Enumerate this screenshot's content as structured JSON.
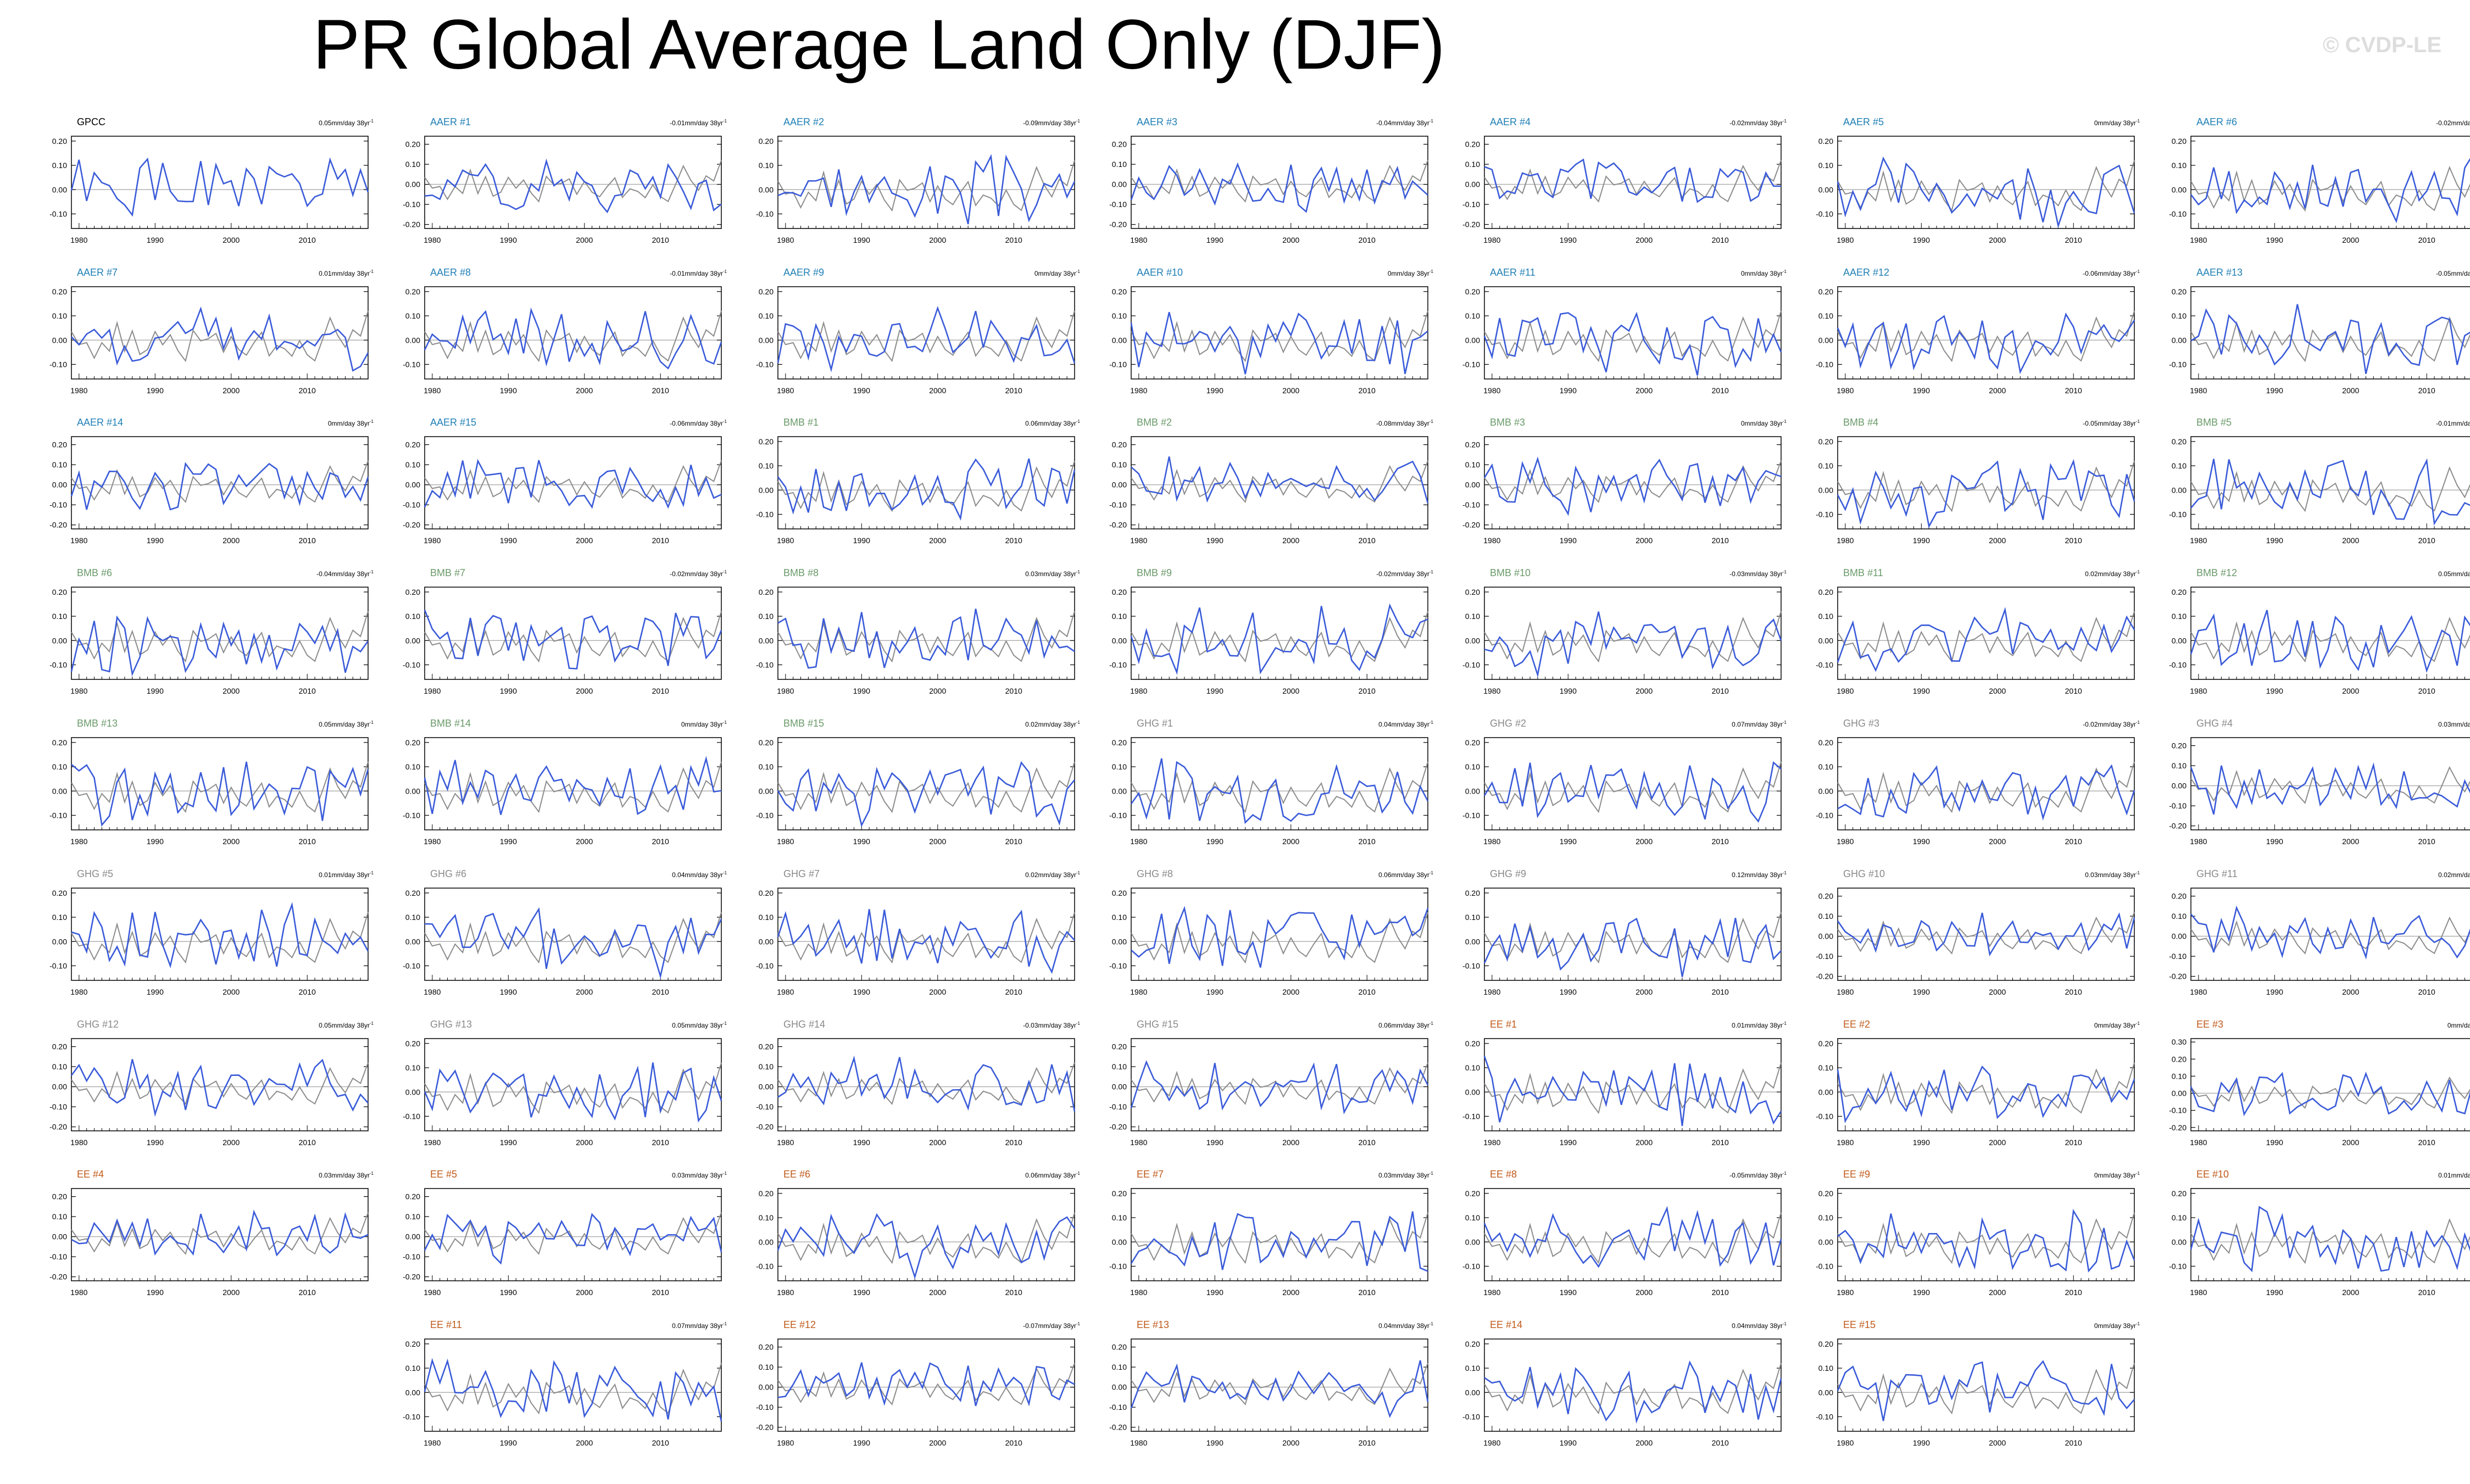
{
  "title": "PR Global Average Land Only (DJF)",
  "watermark": "© CVDP-LE",
  "colors": {
    "observed_line": "#3a5bd9",
    "ensemble_line": "#8c8c8c",
    "zero_line": "#b0b0b0",
    "gpcc_title": "#000000",
    "aer_title": "#1f7fb5",
    "bmb_title": "#6a9a6a",
    "ghg_title": "#8a8a8a",
    "ee_title": "#c05a1a"
  },
  "chart_data": {
    "type": "line",
    "x_range": [
      1979,
      2018
    ],
    "x_ticks": [
      "1980",
      "1990",
      "2000",
      "2010"
    ],
    "unit_suffix": "mm/day 38yr",
    "unit_exp": "-1",
    "panels": [
      {
        "name": "GPCC",
        "group": "gpcc",
        "trend": "0.05",
        "yticks": [
          "0.20",
          "0.10",
          "0.00",
          "-0.10"
        ],
        "ylim": [
          -0.16,
          0.22
        ],
        "seed": 1
      },
      {
        "name": "AAER #1",
        "group": "aer",
        "trend": "-0.01",
        "yticks": [
          "0.20",
          "0.10",
          "0.00",
          "-0.10",
          "-0.20"
        ],
        "ylim": [
          -0.22,
          0.24
        ],
        "seed": 2
      },
      {
        "name": "AAER #2",
        "group": "aer",
        "trend": "-0.09",
        "yticks": [
          "0.20",
          "0.10",
          "0.00",
          "-0.10"
        ],
        "ylim": [
          -0.16,
          0.22
        ],
        "seed": 3
      },
      {
        "name": "AAER #3",
        "group": "aer",
        "trend": "-0.04",
        "yticks": [
          "0.20",
          "0.10",
          "0.00",
          "-0.10",
          "-0.20"
        ],
        "ylim": [
          -0.22,
          0.24
        ],
        "seed": 4
      },
      {
        "name": "AAER #4",
        "group": "aer",
        "trend": "-0.02",
        "yticks": [
          "0.20",
          "0.10",
          "0.00",
          "-0.10",
          "-0.20"
        ],
        "ylim": [
          -0.22,
          0.24
        ],
        "seed": 5
      },
      {
        "name": "AAER #5",
        "group": "aer",
        "trend": "0",
        "yticks": [
          "0.20",
          "0.10",
          "0.00",
          "-0.10"
        ],
        "ylim": [
          -0.16,
          0.22
        ],
        "seed": 6
      },
      {
        "name": "AAER #6",
        "group": "aer",
        "trend": "-0.02",
        "yticks": [
          "0.20",
          "0.10",
          "0.00",
          "-0.10"
        ],
        "ylim": [
          -0.16,
          0.22
        ],
        "seed": 7
      },
      {
        "name": "AAER #7",
        "group": "aer",
        "trend": "0.01",
        "yticks": [
          "0.20",
          "0.10",
          "0.00",
          "-0.10"
        ],
        "ylim": [
          -0.16,
          0.22
        ],
        "seed": 8
      },
      {
        "name": "AAER #8",
        "group": "aer",
        "trend": "-0.01",
        "yticks": [
          "0.20",
          "0.10",
          "0.00",
          "-0.10"
        ],
        "ylim": [
          -0.16,
          0.22
        ],
        "seed": 9
      },
      {
        "name": "AAER #9",
        "group": "aer",
        "trend": "0",
        "yticks": [
          "0.20",
          "0.10",
          "0.00",
          "-0.10"
        ],
        "ylim": [
          -0.16,
          0.22
        ],
        "seed": 10
      },
      {
        "name": "AAER #10",
        "group": "aer",
        "trend": "0",
        "yticks": [
          "0.20",
          "0.10",
          "0.00",
          "-0.10"
        ],
        "ylim": [
          -0.16,
          0.22
        ],
        "seed": 11
      },
      {
        "name": "AAER #11",
        "group": "aer",
        "trend": "0",
        "yticks": [
          "0.20",
          "0.10",
          "0.00",
          "-0.10"
        ],
        "ylim": [
          -0.16,
          0.22
        ],
        "seed": 12
      },
      {
        "name": "AAER #12",
        "group": "aer",
        "trend": "-0.06",
        "yticks": [
          "0.20",
          "0.10",
          "0.00",
          "-0.10"
        ],
        "ylim": [
          -0.16,
          0.22
        ],
        "seed": 13
      },
      {
        "name": "AAER #13",
        "group": "aer",
        "trend": "-0.05",
        "yticks": [
          "0.20",
          "0.10",
          "0.00",
          "-0.10"
        ],
        "ylim": [
          -0.16,
          0.22
        ],
        "seed": 14
      },
      {
        "name": "AAER #14",
        "group": "aer",
        "trend": "0",
        "yticks": [
          "0.20",
          "0.10",
          "0.00",
          "-0.10",
          "-0.20"
        ],
        "ylim": [
          -0.22,
          0.24
        ],
        "seed": 15
      },
      {
        "name": "AAER #15",
        "group": "aer",
        "trend": "-0.06",
        "yticks": [
          "0.20",
          "0.10",
          "0.00",
          "-0.10",
          "-0.20"
        ],
        "ylim": [
          -0.22,
          0.24
        ],
        "seed": 16
      },
      {
        "name": "BMB #1",
        "group": "bmb",
        "trend": "0.06",
        "yticks": [
          "0.20",
          "0.10",
          "0.00",
          "-0.10"
        ],
        "ylim": [
          -0.16,
          0.22
        ],
        "seed": 17
      },
      {
        "name": "BMB #2",
        "group": "bmb",
        "trend": "-0.08",
        "yticks": [
          "0.20",
          "0.10",
          "0.00",
          "-0.10",
          "-0.20"
        ],
        "ylim": [
          -0.22,
          0.24
        ],
        "seed": 18
      },
      {
        "name": "BMB #3",
        "group": "bmb",
        "trend": "0",
        "yticks": [
          "0.20",
          "0.10",
          "0.00",
          "-0.10",
          "-0.20"
        ],
        "ylim": [
          -0.22,
          0.24
        ],
        "seed": 19
      },
      {
        "name": "BMB #4",
        "group": "bmb",
        "trend": "-0.05",
        "yticks": [
          "0.20",
          "0.10",
          "0.00",
          "-0.10"
        ],
        "ylim": [
          -0.16,
          0.22
        ],
        "seed": 20
      },
      {
        "name": "BMB #5",
        "group": "bmb",
        "trend": "-0.01",
        "yticks": [
          "0.20",
          "0.10",
          "0.00",
          "-0.10"
        ],
        "ylim": [
          -0.16,
          0.22
        ],
        "seed": 21
      },
      {
        "name": "BMB #6",
        "group": "bmb",
        "trend": "-0.04",
        "yticks": [
          "0.20",
          "0.10",
          "0.00",
          "-0.10"
        ],
        "ylim": [
          -0.16,
          0.22
        ],
        "seed": 22
      },
      {
        "name": "BMB #7",
        "group": "bmb",
        "trend": "-0.02",
        "yticks": [
          "0.20",
          "0.10",
          "0.00",
          "-0.10"
        ],
        "ylim": [
          -0.16,
          0.22
        ],
        "seed": 23
      },
      {
        "name": "BMB #8",
        "group": "bmb",
        "trend": "0.03",
        "yticks": [
          "0.20",
          "0.10",
          "0.00",
          "-0.10"
        ],
        "ylim": [
          -0.16,
          0.22
        ],
        "seed": 24
      },
      {
        "name": "BMB #9",
        "group": "bmb",
        "trend": "-0.02",
        "yticks": [
          "0.20",
          "0.10",
          "0.00",
          "-0.10"
        ],
        "ylim": [
          -0.16,
          0.22
        ],
        "seed": 25
      },
      {
        "name": "BMB #10",
        "group": "bmb",
        "trend": "-0.03",
        "yticks": [
          "0.20",
          "0.10",
          "0.00",
          "-0.10"
        ],
        "ylim": [
          -0.16,
          0.22
        ],
        "seed": 26
      },
      {
        "name": "BMB #11",
        "group": "bmb",
        "trend": "0.02",
        "yticks": [
          "0.20",
          "0.10",
          "0.00",
          "-0.10"
        ],
        "ylim": [
          -0.16,
          0.22
        ],
        "seed": 27
      },
      {
        "name": "BMB #12",
        "group": "bmb",
        "trend": "0.05",
        "yticks": [
          "0.20",
          "0.10",
          "0.00",
          "-0.10"
        ],
        "ylim": [
          -0.16,
          0.22
        ],
        "seed": 28
      },
      {
        "name": "BMB #13",
        "group": "bmb",
        "trend": "0.05",
        "yticks": [
          "0.20",
          "0.10",
          "0.00",
          "-0.10"
        ],
        "ylim": [
          -0.16,
          0.22
        ],
        "seed": 29
      },
      {
        "name": "BMB #14",
        "group": "bmb",
        "trend": "0",
        "yticks": [
          "0.20",
          "0.10",
          "0.00",
          "-0.10"
        ],
        "ylim": [
          -0.16,
          0.22
        ],
        "seed": 30
      },
      {
        "name": "BMB #15",
        "group": "bmb",
        "trend": "0.02",
        "yticks": [
          "0.20",
          "0.10",
          "0.00",
          "-0.10"
        ],
        "ylim": [
          -0.16,
          0.22
        ],
        "seed": 31
      },
      {
        "name": "GHG #1",
        "group": "ghg",
        "trend": "0.04",
        "yticks": [
          "0.20",
          "0.10",
          "0.00",
          "-0.10"
        ],
        "ylim": [
          -0.16,
          0.22
        ],
        "seed": 32
      },
      {
        "name": "GHG #2",
        "group": "ghg",
        "trend": "0.07",
        "yticks": [
          "0.20",
          "0.10",
          "0.00",
          "-0.10"
        ],
        "ylim": [
          -0.16,
          0.22
        ],
        "seed": 33
      },
      {
        "name": "GHG #3",
        "group": "ghg",
        "trend": "-0.02",
        "yticks": [
          "0.20",
          "0.10",
          "0.00",
          "-0.10"
        ],
        "ylim": [
          -0.16,
          0.22
        ],
        "seed": 34
      },
      {
        "name": "GHG #4",
        "group": "ghg",
        "trend": "0.03",
        "yticks": [
          "0.20",
          "0.10",
          "0.00",
          "-0.10",
          "-0.20"
        ],
        "ylim": [
          -0.22,
          0.24
        ],
        "seed": 35
      },
      {
        "name": "GHG #5",
        "group": "ghg",
        "trend": "0.01",
        "yticks": [
          "0.20",
          "0.10",
          "0.00",
          "-0.10"
        ],
        "ylim": [
          -0.16,
          0.22
        ],
        "seed": 36
      },
      {
        "name": "GHG #6",
        "group": "ghg",
        "trend": "0.04",
        "yticks": [
          "0.20",
          "0.10",
          "0.00",
          "-0.10"
        ],
        "ylim": [
          -0.16,
          0.22
        ],
        "seed": 37
      },
      {
        "name": "GHG #7",
        "group": "ghg",
        "trend": "0.02",
        "yticks": [
          "0.20",
          "0.10",
          "0.00",
          "-0.10"
        ],
        "ylim": [
          -0.16,
          0.22
        ],
        "seed": 38
      },
      {
        "name": "GHG #8",
        "group": "ghg",
        "trend": "0.06",
        "yticks": [
          "0.20",
          "0.10",
          "0.00",
          "-0.10"
        ],
        "ylim": [
          -0.16,
          0.22
        ],
        "seed": 39
      },
      {
        "name": "GHG #9",
        "group": "ghg",
        "trend": "0.12",
        "yticks": [
          "0.20",
          "0.10",
          "0.00",
          "-0.10"
        ],
        "ylim": [
          -0.16,
          0.22
        ],
        "seed": 40
      },
      {
        "name": "GHG #10",
        "group": "ghg",
        "trend": "0.03",
        "yticks": [
          "0.20",
          "0.10",
          "0.00",
          "-0.10",
          "-0.20"
        ],
        "ylim": [
          -0.22,
          0.24
        ],
        "seed": 41
      },
      {
        "name": "GHG #11",
        "group": "ghg",
        "trend": "0.02",
        "yticks": [
          "0.20",
          "0.10",
          "0.00",
          "-0.10",
          "-0.20"
        ],
        "ylim": [
          -0.22,
          0.24
        ],
        "seed": 42
      },
      {
        "name": "GHG #12",
        "group": "ghg",
        "trend": "0.05",
        "yticks": [
          "0.20",
          "0.10",
          "0.00",
          "-0.10",
          "-0.20"
        ],
        "ylim": [
          -0.22,
          0.24
        ],
        "seed": 43
      },
      {
        "name": "GHG #13",
        "group": "ghg",
        "trend": "0.05",
        "yticks": [
          "0.20",
          "0.10",
          "0.00",
          "-0.10"
        ],
        "ylim": [
          -0.16,
          0.22
        ],
        "seed": 44
      },
      {
        "name": "GHG #14",
        "group": "ghg",
        "trend": "-0.03",
        "yticks": [
          "0.20",
          "0.10",
          "0.00",
          "-0.10",
          "-0.20"
        ],
        "ylim": [
          -0.22,
          0.24
        ],
        "seed": 45
      },
      {
        "name": "GHG #15",
        "group": "ghg",
        "trend": "0.06",
        "yticks": [
          "0.20",
          "0.10",
          "0.00",
          "-0.10",
          "-0.20"
        ],
        "ylim": [
          -0.22,
          0.24
        ],
        "seed": 46
      },
      {
        "name": "EE #1",
        "group": "ee",
        "trend": "0.01",
        "yticks": [
          "0.20",
          "0.10",
          "0.00",
          "-0.10"
        ],
        "ylim": [
          -0.16,
          0.22
        ],
        "seed": 47
      },
      {
        "name": "EE #2",
        "group": "ee",
        "trend": "0",
        "yticks": [
          "0.20",
          "0.10",
          "0.00",
          "-0.10"
        ],
        "ylim": [
          -0.16,
          0.22
        ],
        "seed": 48
      },
      {
        "name": "EE #3",
        "group": "ee",
        "trend": "0",
        "yticks": [
          "0.30",
          "0.20",
          "0.10",
          "0.00",
          "-0.10",
          "-0.20"
        ],
        "ylim": [
          -0.22,
          0.32
        ],
        "seed": 49
      },
      {
        "name": "EE #4",
        "group": "ee",
        "trend": "0.03",
        "yticks": [
          "0.20",
          "0.10",
          "0.00",
          "-0.10",
          "-0.20"
        ],
        "ylim": [
          -0.22,
          0.24
        ],
        "seed": 50
      },
      {
        "name": "EE #5",
        "group": "ee",
        "trend": "0.03",
        "yticks": [
          "0.20",
          "0.10",
          "0.00",
          "-0.10",
          "-0.20"
        ],
        "ylim": [
          -0.22,
          0.24
        ],
        "seed": 51
      },
      {
        "name": "EE #6",
        "group": "ee",
        "trend": "0.06",
        "yticks": [
          "0.20",
          "0.10",
          "0.00",
          "-0.10"
        ],
        "ylim": [
          -0.16,
          0.22
        ],
        "seed": 52
      },
      {
        "name": "EE #7",
        "group": "ee",
        "trend": "0.03",
        "yticks": [
          "0.20",
          "0.10",
          "0.00",
          "-0.10"
        ],
        "ylim": [
          -0.16,
          0.22
        ],
        "seed": 53
      },
      {
        "name": "EE #8",
        "group": "ee",
        "trend": "-0.05",
        "yticks": [
          "0.20",
          "0.10",
          "0.00",
          "-0.10"
        ],
        "ylim": [
          -0.16,
          0.22
        ],
        "seed": 54
      },
      {
        "name": "EE #9",
        "group": "ee",
        "trend": "0",
        "yticks": [
          "0.20",
          "0.10",
          "0.00",
          "-0.10"
        ],
        "ylim": [
          -0.16,
          0.22
        ],
        "seed": 55
      },
      {
        "name": "EE #10",
        "group": "ee",
        "trend": "0.01",
        "yticks": [
          "0.20",
          "0.10",
          "0.00",
          "-0.10"
        ],
        "ylim": [
          -0.16,
          0.22
        ],
        "seed": 56
      },
      {
        "name": "EE #11",
        "group": "ee",
        "trend": "0.07",
        "yticks": [
          "0.20",
          "0.10",
          "0.00",
          "-0.10"
        ],
        "ylim": [
          -0.16,
          0.22
        ],
        "seed": 57
      },
      {
        "name": "EE #12",
        "group": "ee",
        "trend": "-0.07",
        "yticks": [
          "0.20",
          "0.10",
          "0.00",
          "-0.10",
          "-0.20"
        ],
        "ylim": [
          -0.22,
          0.24
        ],
        "seed": 58
      },
      {
        "name": "EE #13",
        "group": "ee",
        "trend": "0.04",
        "yticks": [
          "0.20",
          "0.10",
          "0.00",
          "-0.10",
          "-0.20"
        ],
        "ylim": [
          -0.22,
          0.24
        ],
        "seed": 59
      },
      {
        "name": "EE #14",
        "group": "ee",
        "trend": "0.04",
        "yticks": [
          "0.20",
          "0.10",
          "0.00",
          "-0.10"
        ],
        "ylim": [
          -0.16,
          0.22
        ],
        "seed": 60
      },
      {
        "name": "EE #15",
        "group": "ee",
        "trend": "0",
        "yticks": [
          "0.20",
          "0.10",
          "0.00",
          "-0.10"
        ],
        "ylim": [
          -0.16,
          0.22
        ],
        "seed": 61
      }
    ]
  }
}
